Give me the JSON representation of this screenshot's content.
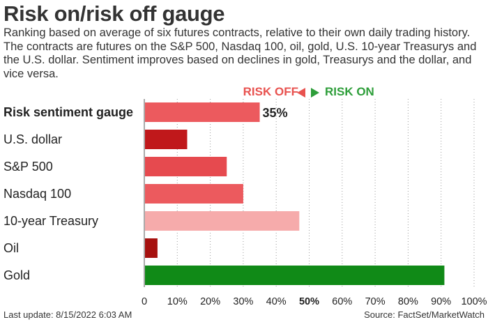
{
  "header": {
    "title": "Risk on/risk off gauge",
    "subtitle": "Ranking based on average of six futures contracts, relative to their own daily trading history. The contracts are futures on the S&P 500, Nasdaq 100, oil, gold, U.S. 10-year Treasurys and the U.S. dollar. Sentiment improves based on declines in gold, Treasurys and the dollar, and vice versa."
  },
  "legend": {
    "risk_off": "RISK OFF",
    "risk_on": "RISK ON",
    "risk_off_color": "#e8524f",
    "risk_on_color": "#2e9e3a"
  },
  "chart_data": {
    "type": "bar",
    "orientation": "horizontal",
    "categories": [
      "Risk sentiment gauge",
      "U.S. dollar",
      "S&P 500",
      "Nasdaq 100",
      "10-year Treasury",
      "Oil",
      "Gold"
    ],
    "values": [
      35,
      13,
      25,
      30,
      47,
      4,
      91
    ],
    "colors": [
      "#ec5a5e",
      "#c0181b",
      "#e64a4f",
      "#ec5a5e",
      "#f6abab",
      "#a6110f",
      "#108a17"
    ],
    "data_labels": [
      "35%",
      "",
      "",
      "",
      "",
      "",
      ""
    ],
    "xlim": [
      0,
      100
    ],
    "ticks": [
      "0",
      "10%",
      "20%",
      "30%",
      "40%",
      "50%",
      "60%",
      "70%",
      "80%",
      "90%",
      "100%"
    ],
    "bold_tick": "50%",
    "grid": "dotted vertical"
  },
  "footer": {
    "last_update": "Last update: 8/15/2022 6:03 AM",
    "source": "Source: FactSet/MarketWatch"
  }
}
